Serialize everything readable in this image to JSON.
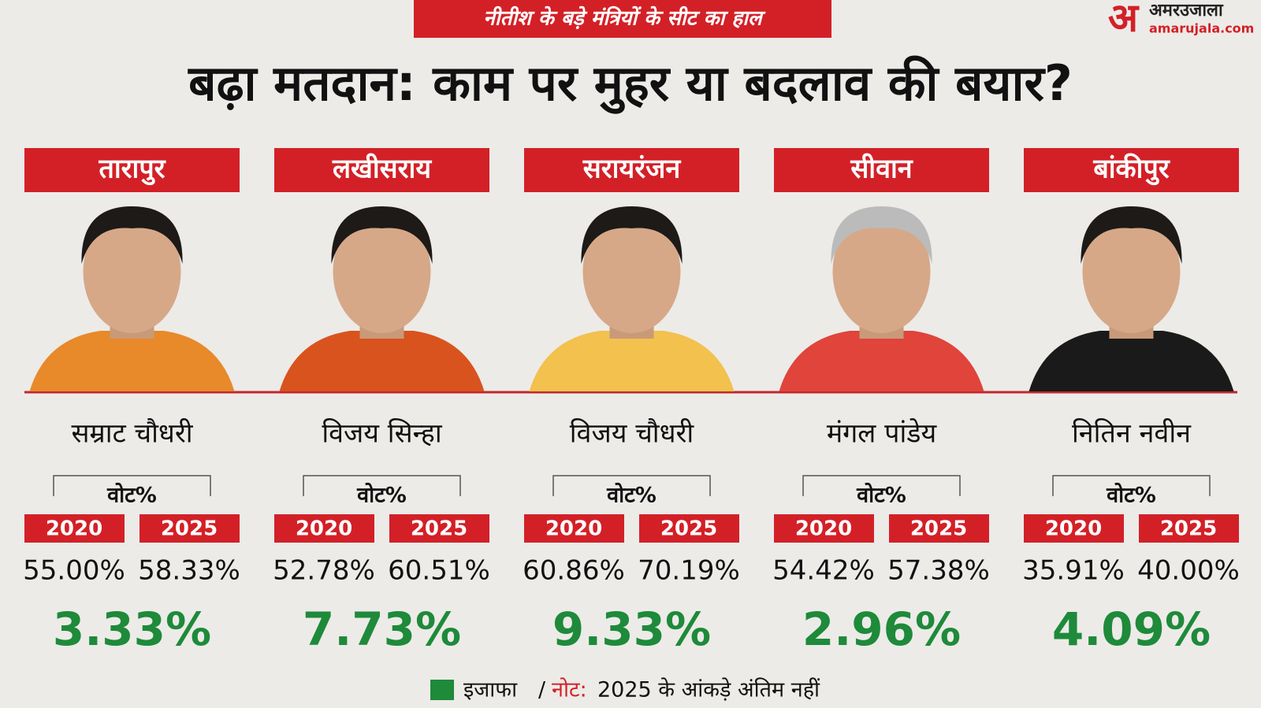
{
  "header": {
    "tag": "नीतीश के बड़े मंत्रियों के सीट का हाल",
    "title": "बढ़ा मतदान: काम पर मुहर या बदलाव की बयार?",
    "logo": {
      "mark": "अ",
      "name": "अमरउजाला",
      "site": "amarujala.com"
    }
  },
  "cards": [
    {
      "seat": "तारापुर",
      "name": "सम्राट चौधरी",
      "vote_label": "वोट%",
      "year_a": "2020",
      "year_b": "2025",
      "value_a": "55.00%",
      "value_b": "58.33%",
      "change": "3.33%"
    },
    {
      "seat": "लखीसराय",
      "name": "विजय सिन्हा",
      "vote_label": "वोट%",
      "year_a": "2020",
      "year_b": "2025",
      "value_a": "52.78%",
      "value_b": "60.51%",
      "change": "7.73%"
    },
    {
      "seat": "सरायरंजन",
      "name": "विजय चौधरी",
      "vote_label": "वोट%",
      "year_a": "2020",
      "year_b": "2025",
      "value_a": "60.86%",
      "value_b": "70.19%",
      "change": "9.33%"
    },
    {
      "seat": "सीवान",
      "name": "मंगल पांडेय",
      "vote_label": "वोट%",
      "year_a": "2020",
      "year_b": "2025",
      "value_a": "54.42%",
      "value_b": "57.38%",
      "change": "2.96%"
    },
    {
      "seat": "बांकीपुर",
      "name": "नितिन नवीन",
      "vote_label": "वोट%",
      "year_a": "2020",
      "year_b": "2025",
      "value_a": "35.91%",
      "value_b": "40.00%",
      "change": "4.09%"
    }
  ],
  "footer": {
    "legend": "इजाफा",
    "separator": "/",
    "note_label": "नोट:",
    "note": "2025 के आंकड़े अंतिम नहीं"
  }
}
